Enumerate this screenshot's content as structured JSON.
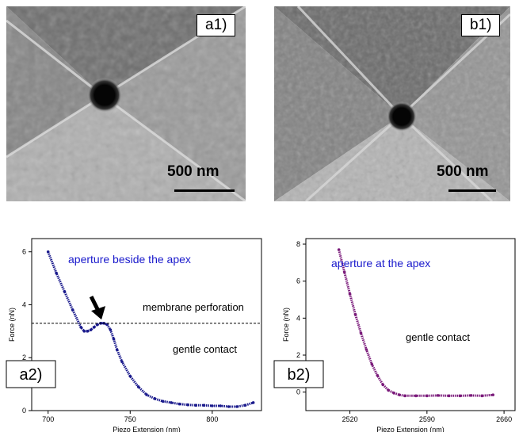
{
  "figure": {
    "a1": {
      "label": "a1)",
      "scale_bar": "500 nm"
    },
    "b1": {
      "label": "b1)",
      "scale_bar": "500 nm"
    },
    "a2": {
      "label": "a2)"
    },
    "b2": {
      "label": "b2)"
    }
  },
  "chart_data": [
    {
      "id": "a2",
      "type": "scatter",
      "xlabel": "Piezo Extension (nm)",
      "ylabel": "Force (nN)",
      "xlim": [
        690,
        830
      ],
      "ylim": [
        0,
        6.5
      ],
      "xticks": [
        700,
        750,
        800
      ],
      "yticks": [
        0,
        2,
        4,
        6
      ],
      "annotations": {
        "title": "aperture beside the apex",
        "threshold_label": "membrane perforation",
        "threshold_value": 3.3,
        "below_label": "gentle contact"
      },
      "color": "#1a1a8c",
      "series": [
        {
          "x": [
            700,
            705,
            710,
            715,
            720,
            722,
            724,
            726,
            728,
            730,
            732,
            734,
            736,
            738,
            740,
            742,
            745,
            750,
            755,
            760,
            765,
            770,
            775,
            780,
            785,
            790,
            795,
            800,
            805,
            810,
            815,
            820,
            825
          ],
          "values": [
            6.0,
            5.2,
            4.5,
            3.8,
            3.15,
            3.0,
            3.0,
            3.05,
            3.15,
            3.25,
            3.3,
            3.3,
            3.25,
            3.05,
            2.7,
            2.3,
            1.85,
            1.3,
            0.9,
            0.6,
            0.45,
            0.35,
            0.3,
            0.25,
            0.22,
            0.2,
            0.2,
            0.18,
            0.18,
            0.15,
            0.15,
            0.2,
            0.3
          ]
        }
      ]
    },
    {
      "id": "b2",
      "type": "scatter",
      "xlabel": "Piezo Extension (nm)",
      "ylabel": "Force (nN)",
      "xlim": [
        2480,
        2670
      ],
      "ylim": [
        -1,
        8.3
      ],
      "xticks": [
        2520,
        2590,
        2660
      ],
      "yticks": [
        0,
        2,
        4,
        6,
        8
      ],
      "annotations": {
        "title": "aperture at the apex",
        "below_label": "gentle contact"
      },
      "color": "#7a1a7a",
      "series": [
        {
          "x": [
            2510,
            2515,
            2520,
            2525,
            2530,
            2535,
            2540,
            2545,
            2550,
            2555,
            2560,
            2565,
            2570,
            2580,
            2590,
            2600,
            2610,
            2620,
            2630,
            2640,
            2650
          ],
          "values": [
            7.7,
            6.5,
            5.3,
            4.2,
            3.2,
            2.3,
            1.5,
            0.9,
            0.4,
            0.1,
            -0.05,
            -0.15,
            -0.2,
            -0.2,
            -0.2,
            -0.18,
            -0.2,
            -0.2,
            -0.18,
            -0.2,
            -0.15
          ]
        }
      ]
    }
  ]
}
